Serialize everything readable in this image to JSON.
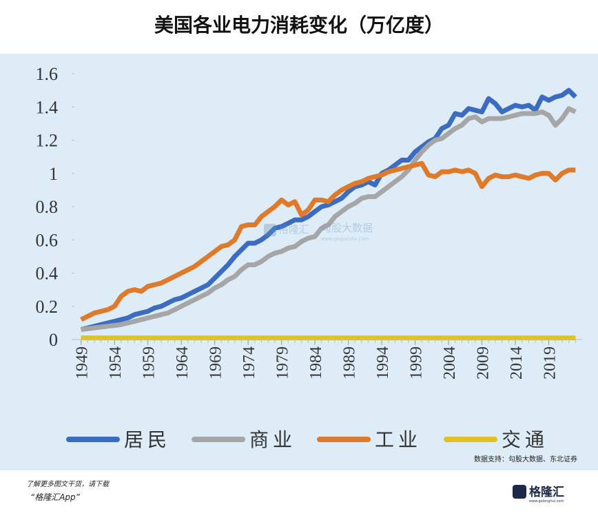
{
  "chart_data": {
    "type": "line",
    "title": "美国各业电力消耗变化（万亿度）",
    "x": [
      1949,
      1950,
      1951,
      1952,
      1953,
      1954,
      1955,
      1956,
      1957,
      1958,
      1959,
      1960,
      1961,
      1962,
      1963,
      1964,
      1965,
      1966,
      1967,
      1968,
      1969,
      1970,
      1971,
      1972,
      1973,
      1974,
      1975,
      1976,
      1977,
      1978,
      1979,
      1980,
      1981,
      1982,
      1983,
      1984,
      1985,
      1986,
      1987,
      1988,
      1989,
      1990,
      1991,
      1992,
      1993,
      1994,
      1995,
      1996,
      1997,
      1998,
      1999,
      2000,
      2001,
      2002,
      2003,
      2004,
      2005,
      2006,
      2007,
      2008,
      2009,
      2010,
      2011,
      2012,
      2013,
      2014,
      2015,
      2016,
      2017,
      2018,
      2019,
      2020,
      2021,
      2022,
      2023
    ],
    "xlim": [
      1948,
      2024
    ],
    "xticks": [
      1949,
      1954,
      1959,
      1964,
      1969,
      1974,
      1979,
      1984,
      1989,
      1994,
      1999,
      2004,
      2009,
      2014,
      2019
    ],
    "ylim": [
      0,
      1.6
    ],
    "yticks": [
      0,
      0.2,
      0.4,
      0.6,
      0.8,
      1,
      1.2,
      1.4,
      1.6
    ],
    "series": [
      {
        "name": "居民",
        "color": "#3b6cc2",
        "values": [
          0.06,
          0.07,
          0.08,
          0.09,
          0.1,
          0.11,
          0.12,
          0.13,
          0.15,
          0.16,
          0.17,
          0.19,
          0.2,
          0.22,
          0.24,
          0.25,
          0.27,
          0.29,
          0.31,
          0.33,
          0.37,
          0.41,
          0.45,
          0.5,
          0.54,
          0.58,
          0.58,
          0.6,
          0.63,
          0.67,
          0.68,
          0.7,
          0.72,
          0.72,
          0.74,
          0.77,
          0.8,
          0.81,
          0.83,
          0.85,
          0.89,
          0.92,
          0.93,
          0.95,
          0.93,
          1.0,
          1.02,
          1.05,
          1.08,
          1.08,
          1.13,
          1.16,
          1.19,
          1.21,
          1.27,
          1.29,
          1.36,
          1.35,
          1.39,
          1.38,
          1.37,
          1.45,
          1.42,
          1.37,
          1.39,
          1.41,
          1.4,
          1.41,
          1.38,
          1.46,
          1.44,
          1.46,
          1.47,
          1.5,
          1.46
        ]
      },
      {
        "name": "商业",
        "color": "#a6a6a6",
        "values": [
          0.06,
          0.065,
          0.07,
          0.075,
          0.08,
          0.085,
          0.09,
          0.1,
          0.11,
          0.12,
          0.13,
          0.14,
          0.15,
          0.16,
          0.18,
          0.2,
          0.22,
          0.24,
          0.26,
          0.28,
          0.31,
          0.33,
          0.36,
          0.38,
          0.42,
          0.45,
          0.45,
          0.47,
          0.5,
          0.52,
          0.53,
          0.55,
          0.56,
          0.59,
          0.61,
          0.62,
          0.67,
          0.69,
          0.74,
          0.77,
          0.8,
          0.82,
          0.85,
          0.86,
          0.86,
          0.89,
          0.92,
          0.95,
          0.98,
          1.02,
          1.08,
          1.13,
          1.17,
          1.2,
          1.21,
          1.24,
          1.27,
          1.29,
          1.33,
          1.34,
          1.31,
          1.33,
          1.33,
          1.33,
          1.34,
          1.35,
          1.36,
          1.36,
          1.36,
          1.37,
          1.35,
          1.29,
          1.33,
          1.39,
          1.37
        ]
      },
      {
        "name": "工业",
        "color": "#e07a2b",
        "values": [
          0.12,
          0.14,
          0.16,
          0.17,
          0.18,
          0.2,
          0.26,
          0.29,
          0.3,
          0.29,
          0.32,
          0.33,
          0.34,
          0.36,
          0.38,
          0.4,
          0.42,
          0.44,
          0.47,
          0.5,
          0.53,
          0.56,
          0.57,
          0.6,
          0.68,
          0.69,
          0.69,
          0.74,
          0.77,
          0.8,
          0.84,
          0.81,
          0.83,
          0.75,
          0.78,
          0.84,
          0.84,
          0.83,
          0.87,
          0.9,
          0.92,
          0.94,
          0.95,
          0.97,
          0.98,
          0.99,
          1.01,
          1.02,
          1.03,
          1.04,
          1.05,
          1.06,
          0.99,
          0.98,
          1.01,
          1.01,
          1.02,
          1.01,
          1.02,
          1.0,
          0.92,
          0.97,
          0.99,
          0.98,
          0.98,
          0.99,
          0.98,
          0.97,
          0.99,
          1.0,
          1.0,
          0.96,
          1.0,
          1.02,
          1.02
        ]
      },
      {
        "name": "交通",
        "color": "#e2c21e",
        "values": [
          0.01,
          0.01,
          0.01,
          0.01,
          0.01,
          0.01,
          0.01,
          0.01,
          0.01,
          0.01,
          0.01,
          0.01,
          0.01,
          0.01,
          0.01,
          0.01,
          0.01,
          0.01,
          0.01,
          0.01,
          0.01,
          0.01,
          0.01,
          0.01,
          0.01,
          0.01,
          0.01,
          0.01,
          0.01,
          0.01,
          0.01,
          0.01,
          0.01,
          0.01,
          0.01,
          0.01,
          0.01,
          0.01,
          0.01,
          0.01,
          0.01,
          0.01,
          0.01,
          0.01,
          0.01,
          0.01,
          0.01,
          0.01,
          0.01,
          0.01,
          0.01,
          0.01,
          0.01,
          0.01,
          0.01,
          0.01,
          0.01,
          0.01,
          0.01,
          0.01,
          0.01,
          0.01,
          0.01,
          0.01,
          0.01,
          0.01,
          0.01,
          0.01,
          0.01,
          0.01,
          0.01,
          0.01,
          0.01,
          0.01,
          0.01
        ]
      }
    ],
    "source": "数据支持：勾股大数据、东北证券"
  },
  "watermark": {
    "brand": "格隆汇",
    "partner": "勾股大数据",
    "url": "www.gogudata.com"
  },
  "footer": {
    "line1": "了解更多图文干货，请下载",
    "line2": "“格隆汇App”",
    "logo": "格隆汇",
    "logo_url": "www.gelonghui.com"
  }
}
